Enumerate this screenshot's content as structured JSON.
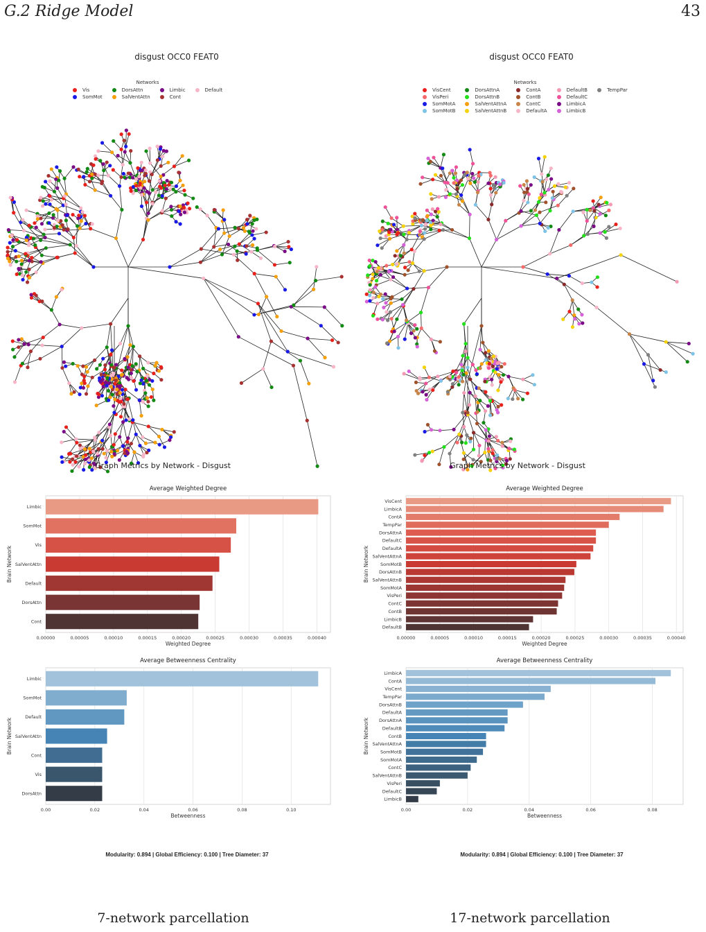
{
  "header": {
    "section": "G.2   Ridge Model",
    "page_number": "43"
  },
  "left": {
    "graph_title": "disgust OCC0 FEAT0",
    "legend_title": "Networks",
    "legend": [
      {
        "name": "Vis",
        "color": "#e8211c"
      },
      {
        "name": "SomMot",
        "color": "#1a1ae6"
      },
      {
        "name": "DorsAttn",
        "color": "#138a13"
      },
      {
        "name": "SalVentAttn",
        "color": "#f5a00a"
      },
      {
        "name": "Limbic",
        "color": "#7a0a86"
      },
      {
        "name": "Cont",
        "color": "#a83232"
      },
      {
        "name": "Default",
        "color": "#f7b6c8"
      }
    ],
    "metrics_title": "Graph Metrics by Network - Disgust",
    "summary": "Modularity: 0.894    |    Global Efficiency: 0.100    |    Tree Diameter: 37",
    "caption": "7-network parcellation"
  },
  "right": {
    "graph_title": "disgust OCC0 FEAT0",
    "legend_title": "Networks",
    "legend": [
      {
        "name": "VisCent",
        "color": "#e8211c"
      },
      {
        "name": "VisPeri",
        "color": "#f56a6a"
      },
      {
        "name": "SomMotA",
        "color": "#1a1ae6"
      },
      {
        "name": "SomMotB",
        "color": "#7ec3e6"
      },
      {
        "name": "DorsAttnA",
        "color": "#138a13"
      },
      {
        "name": "DorsAttnB",
        "color": "#22e01a"
      },
      {
        "name": "SalVentAttnA",
        "color": "#f5a00a"
      },
      {
        "name": "SalVentAttnB",
        "color": "#f5d20a"
      },
      {
        "name": "ContA",
        "color": "#8b2a2a"
      },
      {
        "name": "ContB",
        "color": "#a0522d"
      },
      {
        "name": "ContC",
        "color": "#c8854a"
      },
      {
        "name": "DefaultA",
        "color": "#f7b6c8"
      },
      {
        "name": "DefaultB",
        "color": "#f49ab4"
      },
      {
        "name": "DefaultC",
        "color": "#f0529a"
      },
      {
        "name": "LimbicA",
        "color": "#7a0a86"
      },
      {
        "name": "LimbicB",
        "color": "#d560d8"
      },
      {
        "name": "TempPar",
        "color": "#808080"
      }
    ],
    "metrics_title": "Graph Metrics by Network - Disgust",
    "summary": "Modularity: 0.894    |    Global Efficiency: 0.100    |    Tree Diameter: 37",
    "caption": "17-network parcellation"
  },
  "chart_data": [
    {
      "type": "bar",
      "orientation": "horizontal",
      "title": "Average Weighted Degree",
      "xlabel": "Weighted Degree",
      "ylabel": "Brain Network",
      "categories": [
        "Limbic",
        "SomMot",
        "Vis",
        "SalVentAttn",
        "Default",
        "DorsAttn",
        "Cont"
      ],
      "values": [
        0.000402,
        0.000281,
        0.000273,
        0.000256,
        0.000246,
        0.000227,
        0.000225
      ],
      "xlim": [
        0,
        0.00042
      ],
      "xticks": [
        "0.00000",
        "0.00005",
        "0.00010",
        "0.00015",
        "0.00020",
        "0.00025",
        "0.00030",
        "0.00035",
        "0.00040"
      ],
      "palette": "reds",
      "grid": true
    },
    {
      "type": "bar",
      "orientation": "horizontal",
      "title": "Average Betweenness Centrality",
      "xlabel": "Betweenness",
      "ylabel": "Brain Network",
      "categories": [
        "Limbic",
        "SomMot",
        "Default",
        "SalVentAttn",
        "Cont",
        "Vis",
        "DorsAttn"
      ],
      "values": [
        0.111,
        0.033,
        0.032,
        0.025,
        0.023,
        0.023,
        0.023
      ],
      "xlim": [
        0,
        0.116
      ],
      "xticks": [
        "0.00",
        "0.02",
        "0.04",
        "0.06",
        "0.08",
        "0.10"
      ],
      "palette": "blues",
      "grid": true
    },
    {
      "type": "bar",
      "orientation": "horizontal",
      "title": "Average Weighted Degree",
      "xlabel": "Weighted Degree",
      "ylabel": "Brain Network",
      "categories": [
        "VisCent",
        "LimbicA",
        "ContA",
        "TempPar",
        "DorsAttnA",
        "DefaultC",
        "DefaultA",
        "SalVentAttnA",
        "SomMotB",
        "DorsAttnB",
        "SalVentAttnB",
        "SomMotA",
        "VisPeri",
        "ContC",
        "ContB",
        "LimbicB",
        "DefaultB"
      ],
      "values": [
        0.000392,
        0.000381,
        0.000316,
        0.0003,
        0.000281,
        0.000281,
        0.000277,
        0.000273,
        0.000252,
        0.000249,
        0.000236,
        0.000234,
        0.000231,
        0.000225,
        0.000223,
        0.000188,
        0.000182
      ],
      "xlim": [
        0,
        0.00041
      ],
      "xticks": [
        "0.00000",
        "0.00005",
        "0.00010",
        "0.00015",
        "0.00020",
        "0.00025",
        "0.00030",
        "0.00035",
        "0.00040"
      ],
      "palette": "reds",
      "grid": true
    },
    {
      "type": "bar",
      "orientation": "horizontal",
      "title": "Average Betweenness Centrality",
      "xlabel": "Betweenness",
      "ylabel": "Brain Network",
      "categories": [
        "LimbicA",
        "ContA",
        "VisCent",
        "TempPar",
        "DorsAttnB",
        "DefaultA",
        "DorsAttnA",
        "DefaultB",
        "ContB",
        "SalVentAttnA",
        "SomMotB",
        "SomMotA",
        "ContC",
        "SalVentAttnB",
        "VisPeri",
        "DefaultC",
        "LimbicB"
      ],
      "values": [
        0.086,
        0.081,
        0.047,
        0.045,
        0.038,
        0.033,
        0.033,
        0.032,
        0.026,
        0.026,
        0.025,
        0.023,
        0.021,
        0.02,
        0.011,
        0.01,
        0.004
      ],
      "xlim": [
        0,
        0.09
      ],
      "xticks": [
        "0.00",
        "0.02",
        "0.04",
        "0.06",
        "0.08"
      ],
      "palette": "blues",
      "grid": true
    }
  ]
}
